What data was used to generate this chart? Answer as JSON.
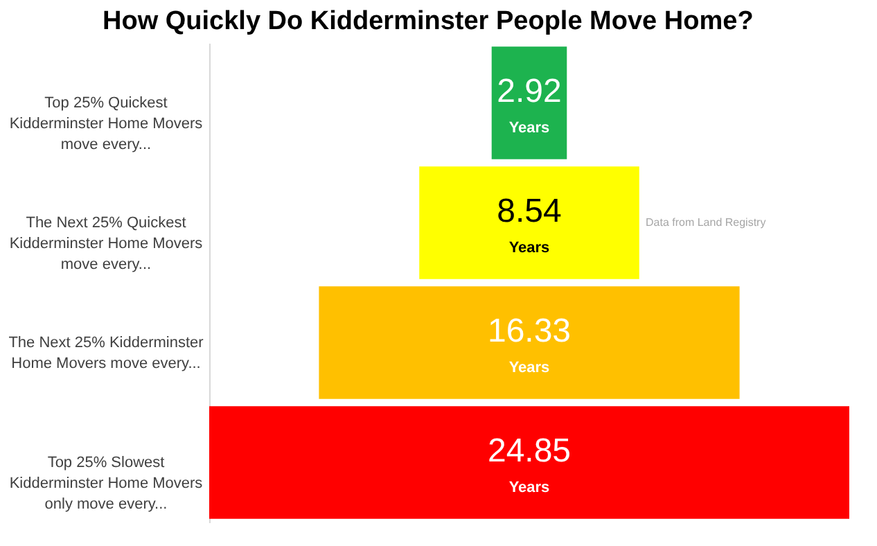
{
  "chart_data": {
    "type": "other",
    "title": "How Quickly Do Kidderminster People Move Home?",
    "categories": [
      "Top 25% Quickest Kidderminster Home  Movers move every...",
      "The Next 25% Quickest Kidderminster Home Movers move every...",
      "The Next 25% Kidderminster Home Movers move every...",
      "Top 25% Slowest Kidderminster Home Movers only move every..."
    ],
    "values": [
      2.92,
      8.54,
      16.33,
      24.85
    ],
    "xlabel": "Years",
    "colors": [
      "#1db34f",
      "#ffff00",
      "#ffc000",
      "#ff0000"
    ],
    "annotations": [
      "Data from Land Registry"
    ],
    "data_labels": true
  }
}
